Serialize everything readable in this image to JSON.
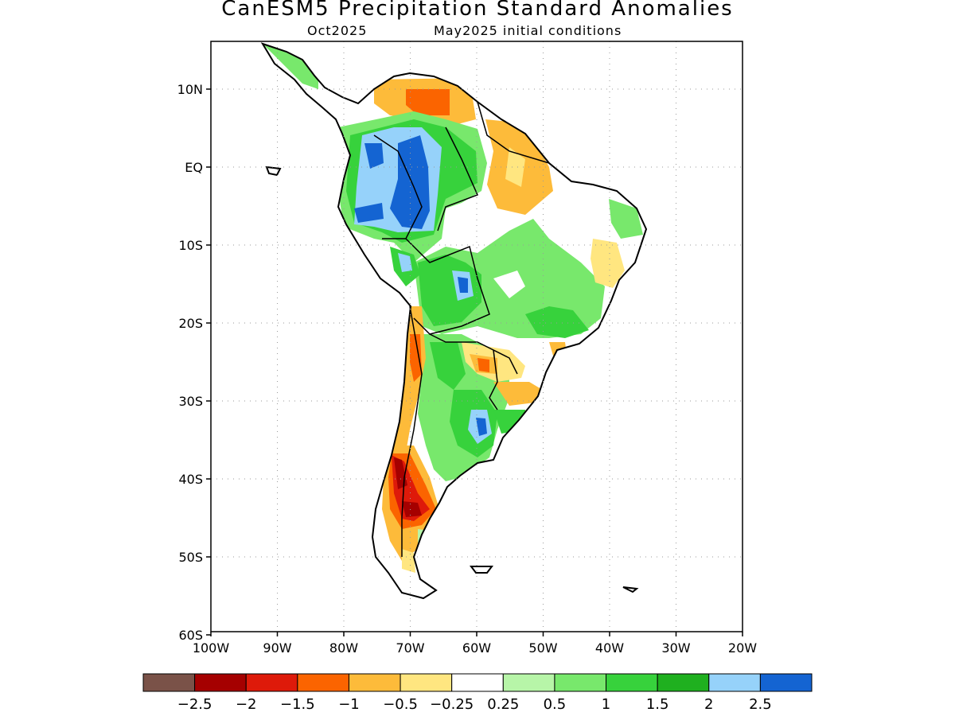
{
  "title": "CanESM5 Precipitation Standard Anomalies",
  "subtitle_left": "Oct2025",
  "subtitle_right": "May2025 initial conditions",
  "lat_ticks": [
    "10N",
    "EQ",
    "10S",
    "20S",
    "30S",
    "40S",
    "50S",
    "60S"
  ],
  "lon_ticks": [
    "100W",
    "90W",
    "80W",
    "70W",
    "60W",
    "50W",
    "40W",
    "30W",
    "20W"
  ],
  "colorbar": {
    "labels": [
      "−2.5",
      "−2",
      "−1.5",
      "−1",
      "−0.5",
      "−0.25",
      "0.25",
      "0.5",
      "1",
      "1.5",
      "2",
      "2.5"
    ],
    "colors": [
      "#7a5248",
      "#a50000",
      "#de1a0a",
      "#fb6400",
      "#fdbb3a",
      "#ffe680",
      "#ffffff",
      "#b7f5a8",
      "#78e86c",
      "#37d23c",
      "#1fb01f",
      "#96d2fa",
      "#1464d2"
    ]
  },
  "colors": {
    "dry_strong": "#a50000",
    "dry": "#de1a0a",
    "dry_mod": "#fb6400",
    "dry_weak": "#fdbb3a",
    "dry_slight": "#ffe680",
    "wet_slight": "#b7f5a8",
    "wet_weak": "#78e86c",
    "wet_mod": "#37d23c",
    "wet": "#1fb01f",
    "wet_strong": "#96d2fa",
    "wet_extreme": "#1464d2"
  }
}
